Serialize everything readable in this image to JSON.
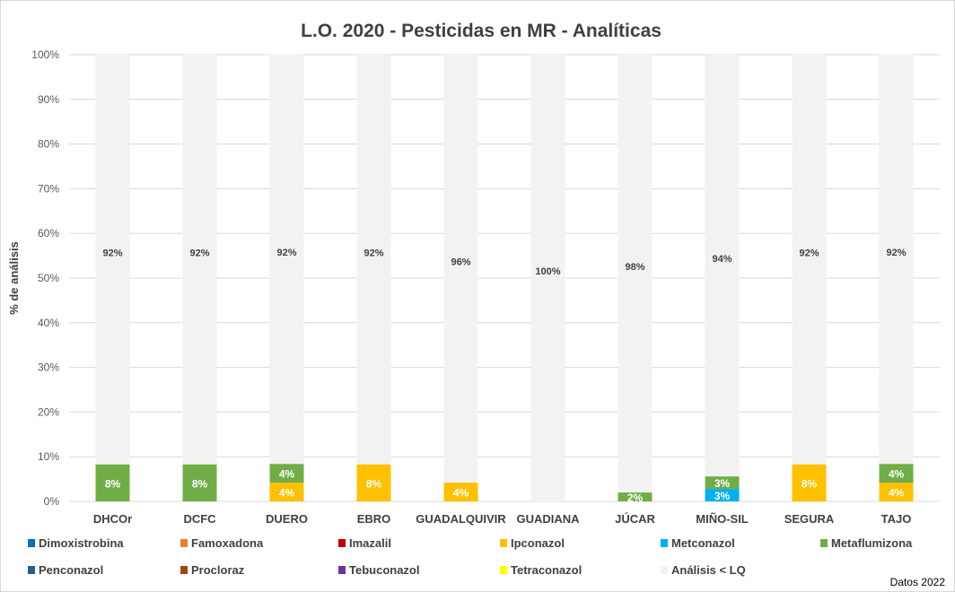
{
  "chart_data": {
    "type": "bar",
    "stacked": true,
    "title": "L.O. 2020 - Pesticidas en MR - Analíticas",
    "ylabel": "% de análisis",
    "xlabel": "",
    "ylim": [
      0,
      100
    ],
    "yticks": [
      "0%",
      "10%",
      "20%",
      "30%",
      "40%",
      "50%",
      "60%",
      "70%",
      "80%",
      "90%",
      "100%"
    ],
    "grid": true,
    "legend_placement": "bottom",
    "categories": [
      "DHCOr",
      "DCFC",
      "DUERO",
      "EBRO",
      "GUADALQUIVIR",
      "GUADIANA",
      "JÚCAR",
      "MIÑO-SIL",
      "SEGURA",
      "TAJO"
    ],
    "series": [
      {
        "name": "Dimoxistrobina",
        "color": "#0070c0",
        "values": [
          0,
          0,
          0,
          0,
          0,
          0,
          0,
          0,
          0,
          0
        ]
      },
      {
        "name": "Famoxadona",
        "color": "#ed7d31",
        "values": [
          0,
          0,
          0,
          0,
          0,
          0,
          0,
          0,
          0,
          0
        ]
      },
      {
        "name": "Imazalil",
        "color": "#c00000",
        "values": [
          0,
          0,
          0,
          0,
          0,
          0,
          0,
          0,
          0,
          0
        ]
      },
      {
        "name": "Ipconazol",
        "color": "#ffc000",
        "values": [
          0,
          0,
          4.2,
          8.3,
          4.2,
          0,
          0,
          0,
          8.3,
          4.2
        ]
      },
      {
        "name": "Metconazol",
        "color": "#00b0f0",
        "values": [
          0,
          0,
          0,
          0,
          0,
          0,
          0,
          2.8,
          0,
          0
        ]
      },
      {
        "name": "Metaflumizona",
        "color": "#70ad47",
        "values": [
          8.3,
          8.3,
          4.2,
          0,
          0,
          0,
          2.0,
          2.8,
          0,
          4.2
        ]
      },
      {
        "name": "Penconazol",
        "color": "#255e91",
        "values": [
          0,
          0,
          0,
          0,
          0,
          0,
          0,
          0,
          0,
          0
        ]
      },
      {
        "name": "Procloraz",
        "color": "#9e480e",
        "values": [
          0,
          0,
          0,
          0,
          0,
          0,
          0,
          0,
          0,
          0
        ]
      },
      {
        "name": "Tebuconazol",
        "color": "#7030a0",
        "values": [
          0,
          0,
          0,
          0,
          0,
          0,
          0,
          0,
          0,
          0
        ]
      },
      {
        "name": "Tetraconazol",
        "color": "#ffff00",
        "values": [
          0,
          0,
          0,
          0,
          0,
          0,
          0,
          0,
          0,
          0
        ]
      },
      {
        "name": "Análisis < LQ",
        "color": "#f2f2f2",
        "values": [
          91.7,
          91.7,
          91.7,
          91.7,
          95.8,
          100,
          98.0,
          94.4,
          91.7,
          91.7
        ]
      }
    ],
    "data_labels": {
      "Ipconazol": [
        "",
        "",
        "4%",
        "8%",
        "4%",
        "",
        "",
        "",
        "8%",
        "4%"
      ],
      "Metconazol": [
        "",
        "",
        "",
        "",
        "",
        "",
        "",
        "3%",
        "",
        ""
      ],
      "Metaflumizona": [
        "8%",
        "8%",
        "4%",
        "",
        "",
        "",
        "2%",
        "3%",
        "",
        "4%"
      ],
      "Análisis < LQ": [
        "92%",
        "92%",
        "92%",
        "92%",
        "96%",
        "100%",
        "98%",
        "94%",
        "92%",
        "92%"
      ]
    },
    "annotation": "Datos 2022"
  }
}
